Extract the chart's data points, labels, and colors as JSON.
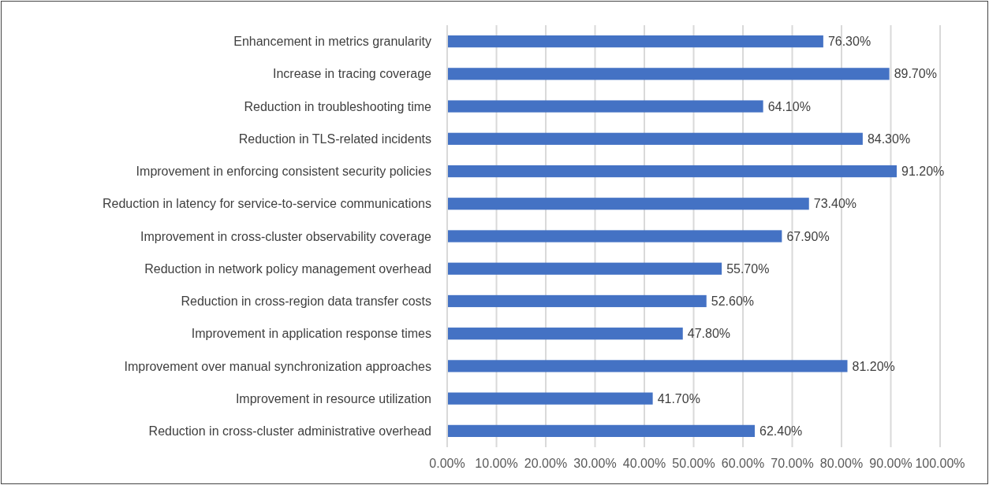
{
  "chart_data": {
    "type": "bar",
    "orientation": "horizontal",
    "categories": [
      "Enhancement in metrics granularity",
      "Increase in tracing coverage",
      "Reduction in troubleshooting time",
      "Reduction in TLS-related incidents",
      "Improvement in enforcing consistent security policies",
      "Reduction in latency for service-to-service communications",
      "Improvement in cross-cluster observability coverage",
      "Reduction in network policy management overhead",
      "Reduction in cross-region data transfer costs",
      "Improvement in application response times",
      "Improvement over manual synchronization approaches",
      "Improvement in resource utilization",
      "Reduction in cross-cluster administrative overhead"
    ],
    "values": [
      76.3,
      89.7,
      64.1,
      84.3,
      91.2,
      73.4,
      67.9,
      55.7,
      52.6,
      47.8,
      81.2,
      41.7,
      62.4
    ],
    "value_labels": [
      "76.30%",
      "89.70%",
      "64.10%",
      "84.30%",
      "91.20%",
      "73.40%",
      "67.90%",
      "55.70%",
      "52.60%",
      "47.80%",
      "81.20%",
      "41.70%",
      "62.40%"
    ],
    "color": "#4472c4",
    "xlim": [
      0,
      100
    ],
    "xticks": [
      {
        "value": 0,
        "label": "0.00%"
      },
      {
        "value": 10,
        "label": "10.00%"
      },
      {
        "value": 20,
        "label": "20.00%"
      },
      {
        "value": 30,
        "label": "30.00%"
      },
      {
        "value": 40,
        "label": "40.00%"
      },
      {
        "value": 50,
        "label": "50.00%"
      },
      {
        "value": 60,
        "label": "60.00%"
      },
      {
        "value": 70,
        "label": "70.00%"
      },
      {
        "value": 80,
        "label": "80.00%"
      },
      {
        "value": 90,
        "label": "90.00%"
      },
      {
        "value": 100,
        "label": "100.00%"
      }
    ],
    "grid": "x"
  }
}
